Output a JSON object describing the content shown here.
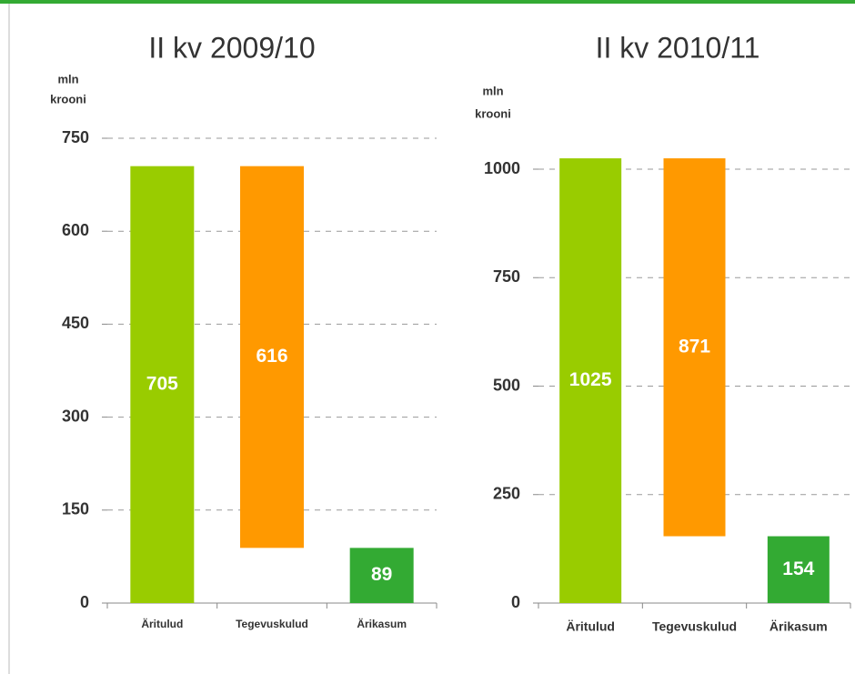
{
  "charts": [
    {
      "chart_data": {
        "type": "waterfall",
        "title": "II kv 2009/10",
        "unit_label": [
          "mln",
          "krooni"
        ],
        "categories": [
          "Äritulud",
          "Tegevuskulud",
          "Ärikasum"
        ],
        "values": [
          705,
          616,
          89
        ],
        "colors": [
          "#99cc00",
          "#ff9900",
          "#33aa33"
        ],
        "ylim": [
          0,
          750
        ],
        "yticks": [
          0,
          150,
          300,
          450,
          600,
          750
        ],
        "grid": true
      }
    },
    {
      "chart_data": {
        "type": "waterfall",
        "title": "II kv 2010/11",
        "unit_label": [
          "mln",
          "krooni"
        ],
        "categories": [
          "Äritulud",
          "Tegevuskulud",
          "Ärikasum"
        ],
        "values": [
          1025,
          871,
          154
        ],
        "colors": [
          "#99cc00",
          "#ff9900",
          "#33aa33"
        ],
        "ylim": [
          0,
          1000
        ],
        "yticks": [
          0,
          250,
          500,
          750,
          1000
        ],
        "grid": true
      }
    }
  ]
}
